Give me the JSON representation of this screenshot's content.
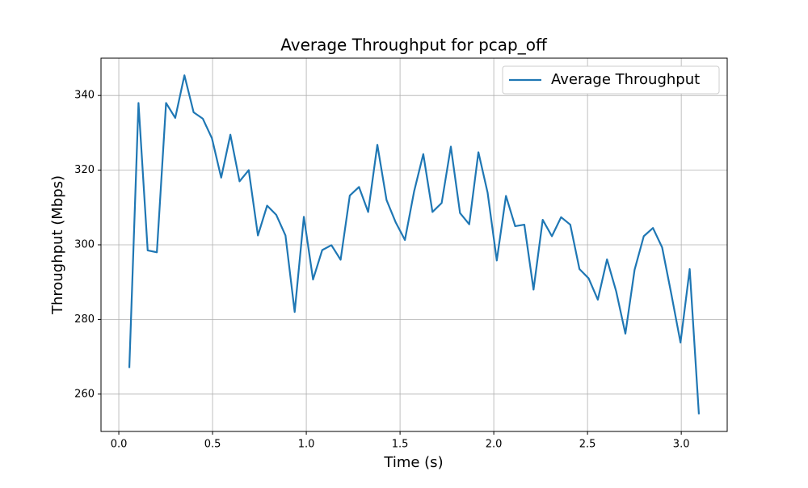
{
  "chart_data": {
    "type": "line",
    "title": "Average Throughput for pcap_off",
    "x_label": "Time (s)",
    "y_label": "Throughput (Mbps)",
    "x": [
      0.056,
      0.105,
      0.154,
      0.203,
      0.252,
      0.301,
      0.35,
      0.399,
      0.448,
      0.497,
      0.546,
      0.595,
      0.644,
      0.693,
      0.742,
      0.791,
      0.84,
      0.889,
      0.938,
      0.987,
      1.036,
      1.085,
      1.134,
      1.183,
      1.232,
      1.281,
      1.33,
      1.379,
      1.428,
      1.477,
      1.526,
      1.575,
      1.624,
      1.673,
      1.722,
      1.771,
      1.82,
      1.869,
      1.918,
      1.967,
      2.016,
      2.065,
      2.114,
      2.163,
      2.212,
      2.261,
      2.31,
      2.359,
      2.408,
      2.457,
      2.506,
      2.555,
      2.604,
      2.653,
      2.702,
      2.751,
      2.8,
      2.849,
      2.898,
      2.947,
      2.996,
      3.045,
      3.094
    ],
    "series": [
      {
        "name": "Average Throughput",
        "color": "#1f77b4",
        "values": [
          267,
          338,
          298.5,
          298,
          338,
          334,
          345.4,
          335.5,
          333.8,
          328.5,
          318,
          329.5,
          317,
          320,
          302.5,
          310.5,
          308,
          302.5,
          282,
          307.5,
          290.7,
          298.6,
          299.9,
          296,
          313.2,
          315.5,
          308.8,
          326.8,
          312,
          306,
          301.3,
          314.3,
          324.3,
          308.8,
          311.2,
          326.3,
          308.5,
          305.5,
          324.8,
          314,
          295.8,
          313.1,
          305,
          305.4,
          288,
          306.7,
          302.3,
          307.4,
          305.4,
          293.5,
          291,
          285.3,
          296.1,
          287.5,
          276.2,
          293.3,
          302.3,
          304.5,
          299.3,
          286.8,
          273.8,
          293.5,
          254.6
        ]
      }
    ],
    "xlim": [
      -0.095,
      3.245
    ],
    "ylim": [
      250,
      350
    ],
    "xticks": [
      {
        "value": 0,
        "label": "0.0"
      },
      0.5,
      {
        "value": 1,
        "label": "1.0"
      },
      1.5,
      {
        "value": 2,
        "label": "2.0"
      },
      2.5,
      {
        "value": 3,
        "label": "3.0"
      }
    ],
    "yticks": [
      260,
      280,
      300,
      320,
      340
    ],
    "grid": true,
    "legend": "upper-right"
  }
}
